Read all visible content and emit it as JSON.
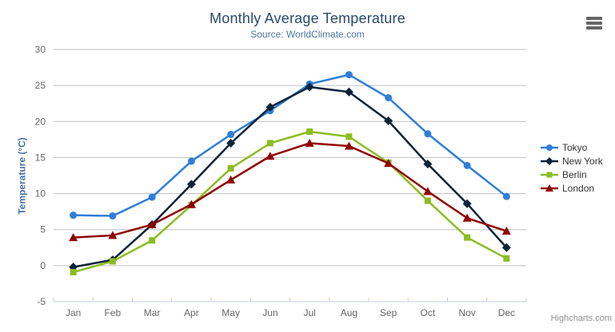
{
  "chart": {
    "credits": "Highcharts.com",
    "export_menu_icon": "hamburger-icon"
  },
  "chart_data": {
    "type": "line",
    "title": "Monthly Average Temperature",
    "subtitle": "Source: WorldClimate.com",
    "categories": [
      "Jan",
      "Feb",
      "Mar",
      "Apr",
      "May",
      "Jun",
      "Jul",
      "Aug",
      "Sep",
      "Oct",
      "Nov",
      "Dec"
    ],
    "series": [
      {
        "name": "Tokyo",
        "color": "#2f7ed8",
        "marker": "circle",
        "values": [
          7.0,
          6.9,
          9.5,
          14.5,
          18.2,
          21.5,
          25.2,
          26.5,
          23.3,
          18.3,
          13.9,
          9.6
        ]
      },
      {
        "name": "New York",
        "color": "#0d233a",
        "marker": "diamond",
        "values": [
          -0.2,
          0.8,
          5.7,
          11.3,
          17.0,
          22.0,
          24.8,
          24.1,
          20.1,
          14.1,
          8.6,
          2.5
        ]
      },
      {
        "name": "Berlin",
        "color": "#8bbc21",
        "marker": "square",
        "values": [
          -0.9,
          0.6,
          3.5,
          8.4,
          13.5,
          17.0,
          18.6,
          17.9,
          14.3,
          9.0,
          3.9,
          1.0
        ]
      },
      {
        "name": "London",
        "color": "#910000",
        "marker": "triangle",
        "values": [
          3.9,
          4.2,
          5.7,
          8.5,
          11.9,
          15.2,
          17.0,
          16.6,
          14.2,
          10.3,
          6.6,
          4.8
        ]
      }
    ],
    "xlabel": "",
    "ylabel": "Temperature (°C)",
    "ylim": [
      -5,
      30
    ],
    "y_ticks": [
      -5,
      0,
      5,
      10,
      15,
      20,
      25,
      30
    ],
    "grid": true,
    "legend_position": "right"
  },
  "colors": {
    "title": "#274b6d",
    "subtitle": "#4d759e",
    "axis_title": "#4572a7",
    "tick_label": "#666666",
    "gridline": "#c0c0c0",
    "axis_line": "#c0d0e0",
    "legend_text": "#333333",
    "credits": "#909090",
    "menu_icon": "#666666"
  }
}
